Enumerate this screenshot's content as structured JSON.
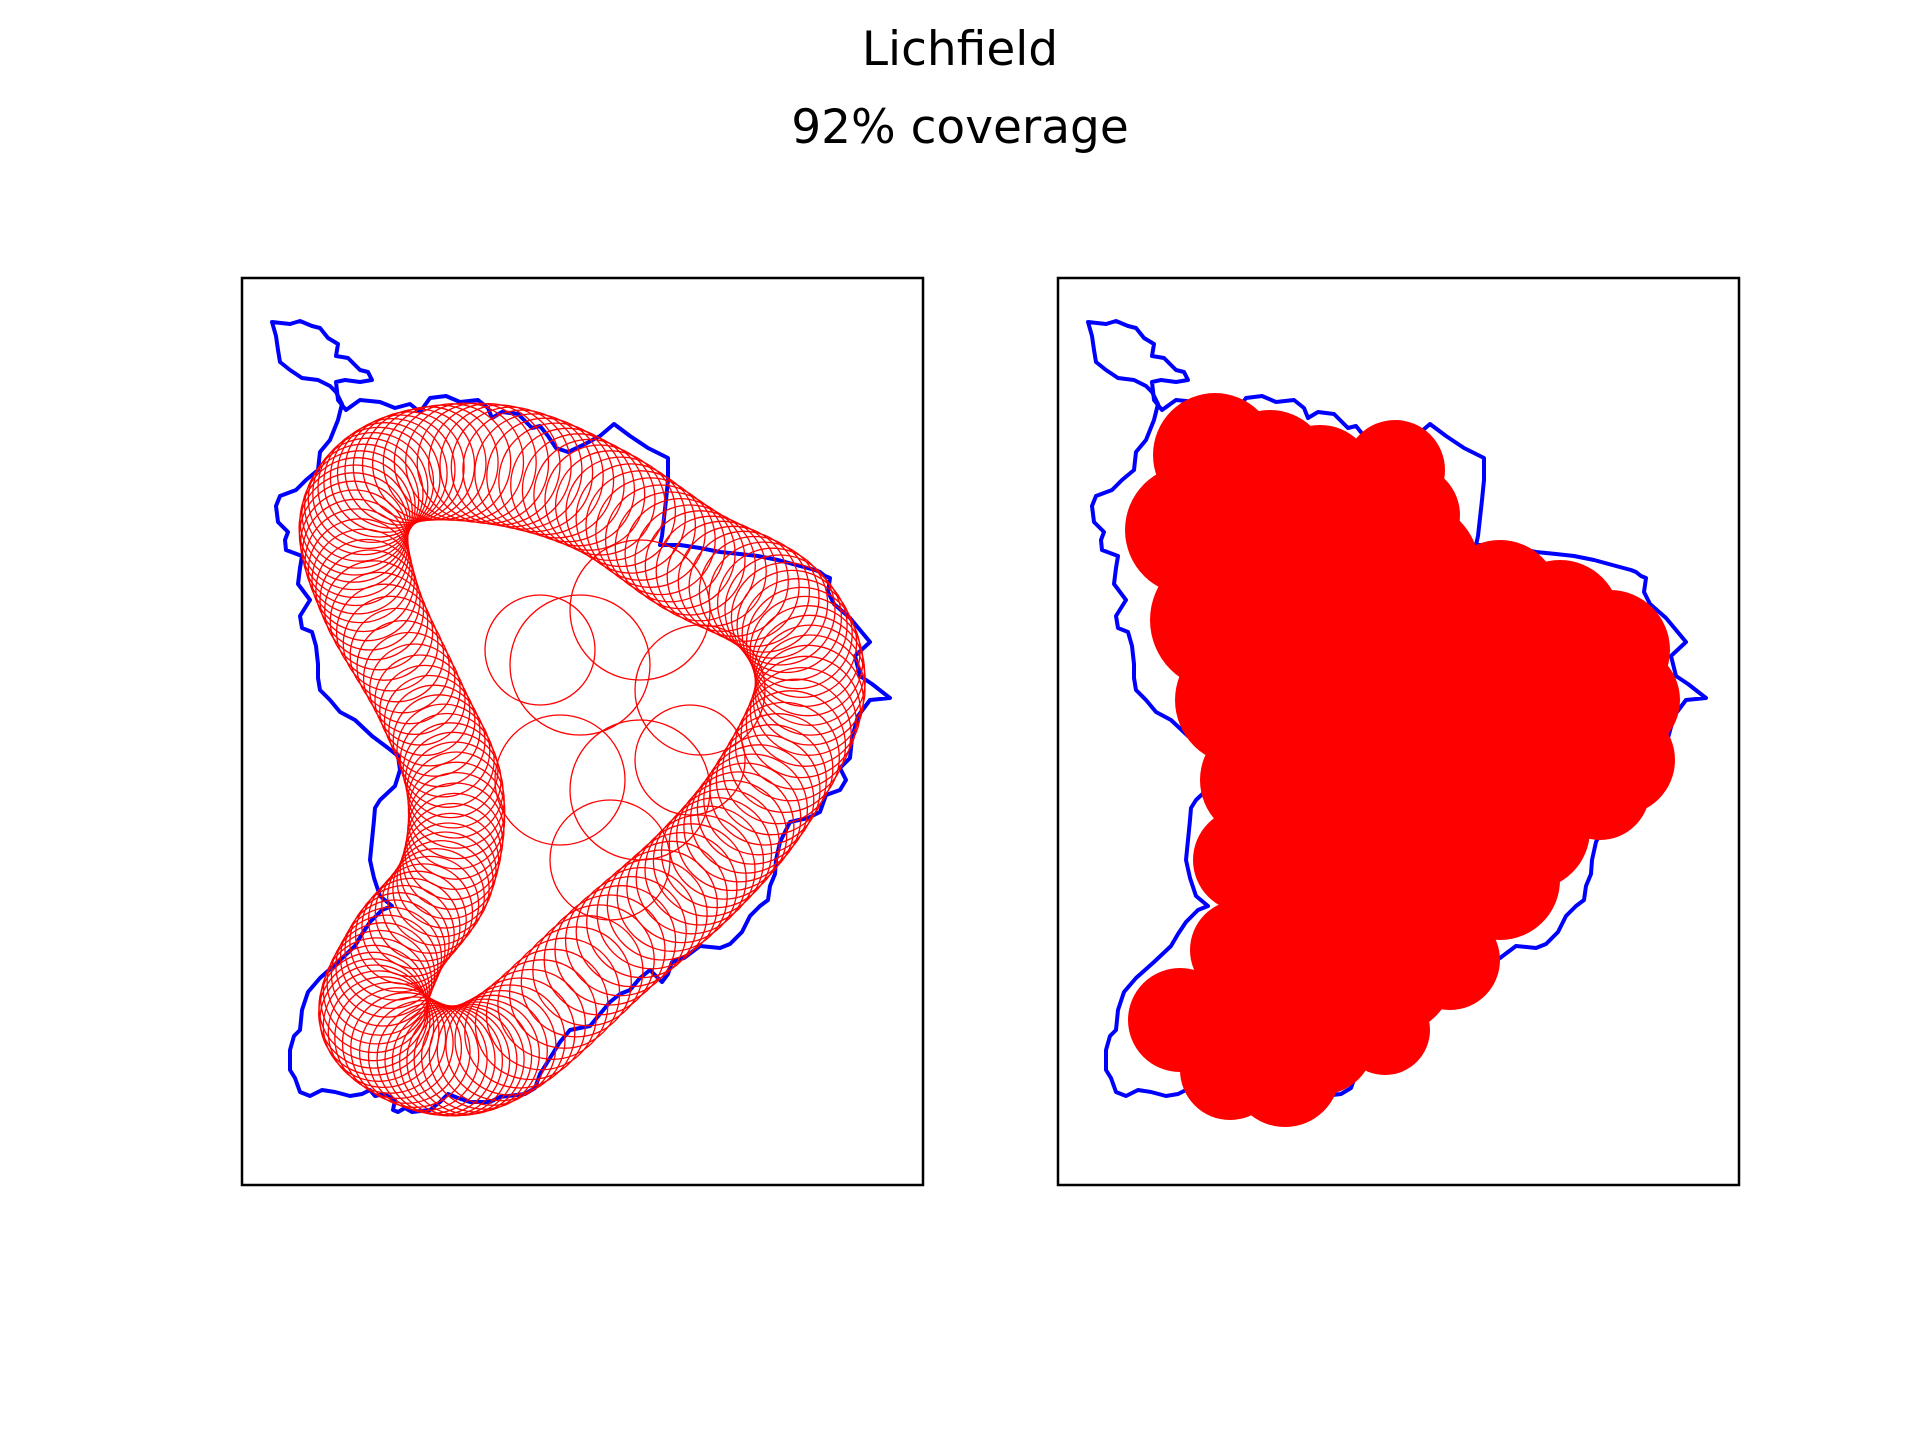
{
  "figure": {
    "title": "Lichfield",
    "subtitle": "92% coverage"
  },
  "colors": {
    "boundary": "#0000ff",
    "coverage": "#ff0000",
    "frame": "#000000"
  },
  "panels": [
    {
      "name": "circle-outlines",
      "style": "outline"
    },
    {
      "name": "coverage-union",
      "style": "filled"
    }
  ]
}
